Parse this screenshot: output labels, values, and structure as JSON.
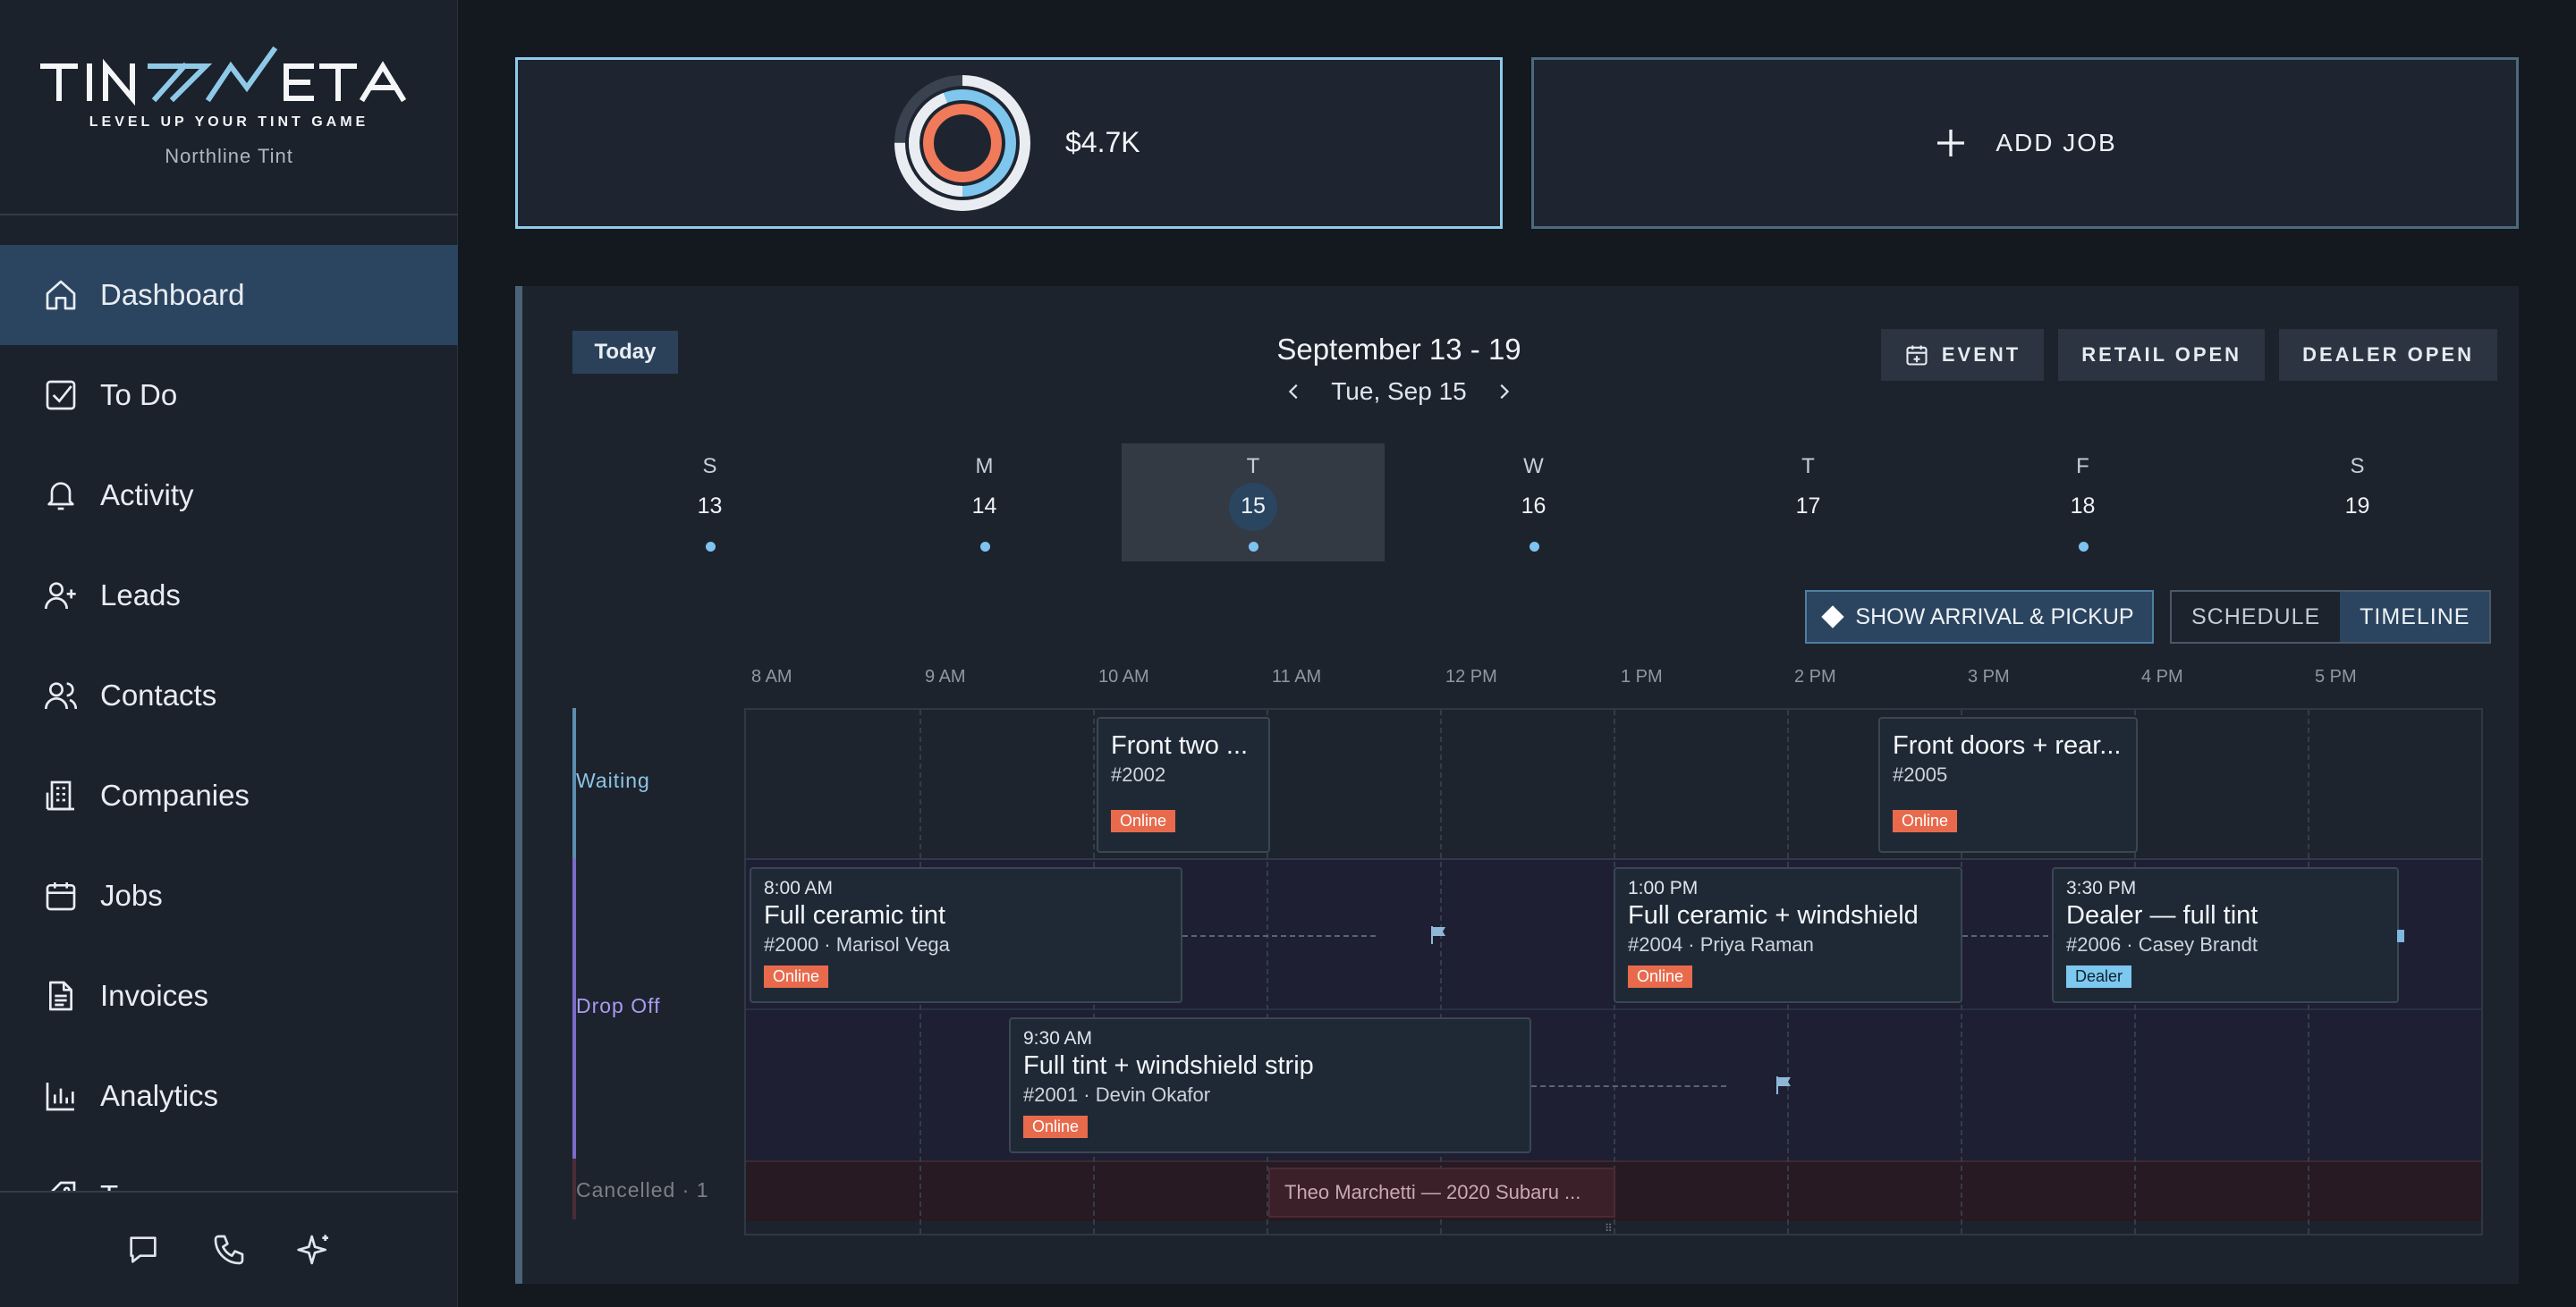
{
  "brand": {
    "logo_text": "TINTMETA",
    "tagline": "LEVEL UP YOUR TINT GAME",
    "company": "Northline Tint"
  },
  "nav": {
    "items": [
      {
        "label": "Dashboard",
        "icon": "home-icon",
        "active": true
      },
      {
        "label": "To Do",
        "icon": "checkbox-icon"
      },
      {
        "label": "Activity",
        "icon": "bell-icon"
      },
      {
        "label": "Leads",
        "icon": "user-plus-icon"
      },
      {
        "label": "Contacts",
        "icon": "users-icon"
      },
      {
        "label": "Companies",
        "icon": "building-icon"
      },
      {
        "label": "Jobs",
        "icon": "calendar-icon"
      },
      {
        "label": "Invoices",
        "icon": "document-icon"
      },
      {
        "label": "Analytics",
        "icon": "bar-chart-icon"
      },
      {
        "label": "T...",
        "icon": "tag-icon"
      }
    ],
    "bottom_icons": [
      "chat-icon",
      "phone-icon",
      "sparkle-icon"
    ]
  },
  "revenue": {
    "value": "$4.7K",
    "colors": {
      "outer": "#ffffff",
      "middle": "#7ec6ee",
      "inner": "#f07a5a",
      "track": "#3a4250"
    }
  },
  "add_job": {
    "label": "ADD JOB"
  },
  "calendar": {
    "today_label": "Today",
    "range": "September 13 - 19",
    "current_date": "Tue, Sep 15",
    "buttons": {
      "event": "EVENT",
      "retail": "RETAIL OPEN",
      "dealer": "DEALER OPEN"
    },
    "days": [
      {
        "dow": "S",
        "num": "13",
        "dot": true
      },
      {
        "dow": "M",
        "num": "14",
        "dot": true
      },
      {
        "dow": "T",
        "num": "15",
        "dot": true,
        "selected": true
      },
      {
        "dow": "W",
        "num": "16",
        "dot": true
      },
      {
        "dow": "T",
        "num": "17",
        "dot": false
      },
      {
        "dow": "F",
        "num": "18",
        "dot": true
      },
      {
        "dow": "S",
        "num": "19",
        "dot": false
      }
    ],
    "arrival_toggle": "SHOW ARRIVAL & PICKUP",
    "views": {
      "schedule": "SCHEDULE",
      "timeline": "TIMELINE",
      "active": "timeline"
    },
    "hours": [
      "8 AM",
      "9 AM",
      "10 AM",
      "11 AM",
      "12 PM",
      "1 PM",
      "2 PM",
      "3 PM",
      "4 PM",
      "5 PM"
    ],
    "lanes": {
      "waiting": {
        "label": "Waiting",
        "color": "#5a8fae"
      },
      "dropoff": {
        "label": "Drop Off",
        "color": "#7b6bc8"
      },
      "cancelled": {
        "label": "Cancelled · 1",
        "color": "#4a2c36"
      }
    },
    "jobs": {
      "j2002": {
        "title": "Front two ...",
        "meta": "#2002",
        "badge": "Online"
      },
      "j2005": {
        "title": "Front doors + rear...",
        "meta": "#2005",
        "badge": "Online"
      },
      "j2000": {
        "time": "8:00 AM",
        "title": "Full ceramic tint",
        "meta": "#2000 · Marisol Vega",
        "badge": "Online"
      },
      "j2004": {
        "time": "1:00 PM",
        "title": "Full ceramic + windshield",
        "meta": "#2004 · Priya Raman",
        "badge": "Online"
      },
      "j2006": {
        "time": "3:30 PM",
        "title": "Dealer — full tint",
        "meta": "#2006 · Casey Brandt",
        "badge": "Dealer"
      },
      "j2001": {
        "time": "9:30 AM",
        "title": "Full tint + windshield strip",
        "meta": "#2001 · Devin Okafor",
        "badge": "Online"
      }
    },
    "cancelled_job": "Theo Marchetti — 2020 Subaru ..."
  }
}
